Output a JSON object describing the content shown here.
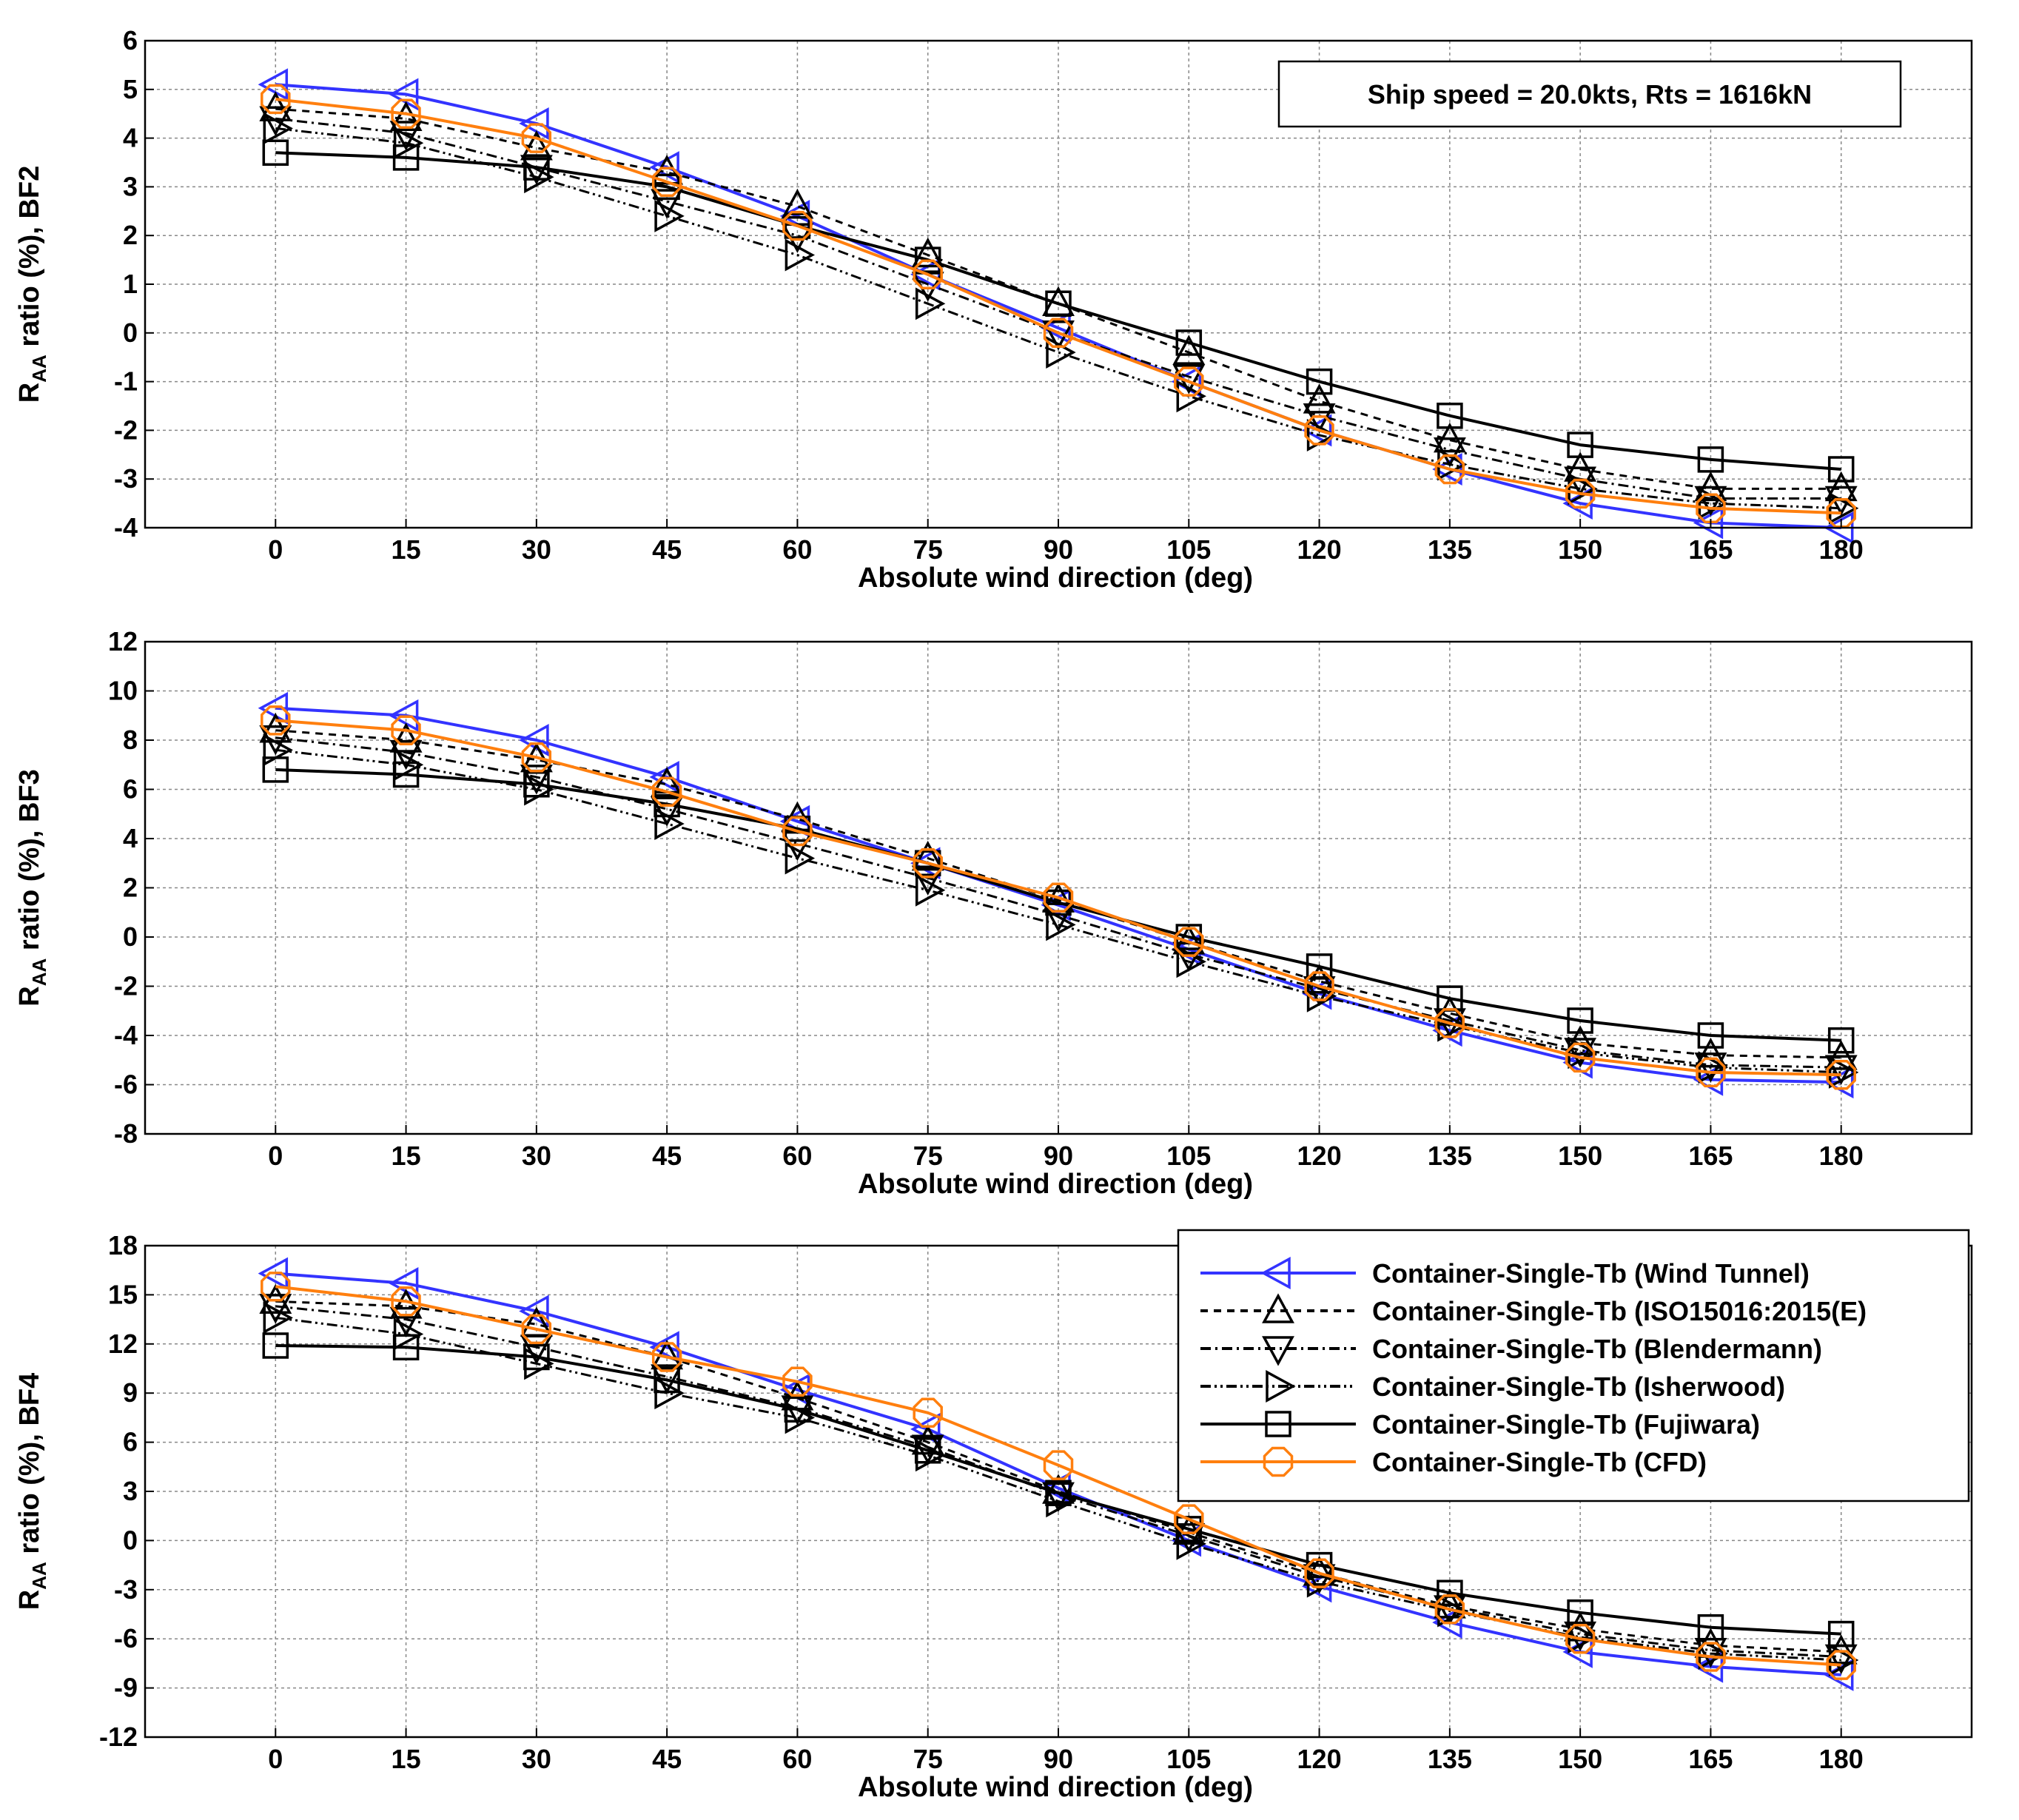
{
  "chart_data": [
    {
      "type": "line",
      "xlabel": "Absolute wind direction (deg)",
      "ylabel": "R_AA ratio (%), BF2",
      "ylabel_main": "R",
      "ylabel_sub": "AA",
      "ylabel_rest": " ratio (%), BF2",
      "annotation": "Ship speed = 20.0kts, Rts = 1616kN",
      "xlim": [
        -15,
        195
      ],
      "ylim": [
        -4,
        6
      ],
      "yticks": [
        6,
        5,
        4,
        3,
        2,
        1,
        0,
        -1,
        -2,
        -3,
        -4
      ],
      "ytick_labels": [
        "6",
        "5",
        "4",
        "3",
        "2",
        "1",
        "0",
        "-1",
        "-2",
        "-3",
        "-4"
      ],
      "grid": true,
      "x": [
        0,
        15,
        30,
        45,
        60,
        75,
        90,
        105,
        120,
        135,
        150,
        165,
        180
      ],
      "xtick_labels": [
        "0",
        "15",
        "30",
        "45",
        "60",
        "75",
        "90",
        "105",
        "120",
        "135",
        "150",
        "165",
        "180"
      ],
      "series": [
        {
          "name": "Container-Single-Tb (Wind Tunnel)",
          "values": [
            5.1,
            4.9,
            4.3,
            3.4,
            2.4,
            1.2,
            0.1,
            -1.0,
            -2.0,
            -2.8,
            -3.5,
            -3.9,
            -4.0
          ]
        },
        {
          "name": "Container-Single-Tb (ISO15016:2015(E)",
          "values": [
            4.6,
            4.4,
            3.8,
            3.3,
            2.6,
            1.6,
            0.6,
            -0.4,
            -1.4,
            -2.2,
            -2.8,
            -3.2,
            -3.2
          ]
        },
        {
          "name": "Container-Single-Tb (Blendermann)",
          "values": [
            4.4,
            4.1,
            3.4,
            2.7,
            2.0,
            1.0,
            0.0,
            -0.9,
            -1.7,
            -2.4,
            -3.0,
            -3.4,
            -3.4
          ]
        },
        {
          "name": "Container-Single-Tb (Isherwood)",
          "values": [
            4.2,
            3.9,
            3.2,
            2.4,
            1.6,
            0.6,
            -0.4,
            -1.3,
            -2.1,
            -2.7,
            -3.2,
            -3.5,
            -3.6
          ]
        },
        {
          "name": "Container-Single-Tb (Fujiwara)",
          "values": [
            3.7,
            3.6,
            3.4,
            3.0,
            2.2,
            1.5,
            0.6,
            -0.2,
            -1.0,
            -1.7,
            -2.3,
            -2.6,
            -2.8
          ]
        },
        {
          "name": "Container-Single-Tb (CFD)",
          "values": [
            4.8,
            4.5,
            4.0,
            3.1,
            2.2,
            1.2,
            0.0,
            -1.0,
            -2.0,
            -2.8,
            -3.3,
            -3.6,
            -3.7
          ]
        }
      ]
    },
    {
      "type": "line",
      "xlabel": "Absolute wind direction (deg)",
      "ylabel": "R_AA ratio (%), BF3",
      "ylabel_main": "R",
      "ylabel_sub": "AA",
      "ylabel_rest": " ratio (%), BF3",
      "xlim": [
        -15,
        195
      ],
      "ylim": [
        -8,
        12
      ],
      "yticks": [
        12,
        10,
        8,
        6,
        4,
        2,
        0,
        -2,
        -4,
        -6,
        -8
      ],
      "ytick_labels": [
        "12",
        "10",
        "8",
        "6",
        "4",
        "2",
        "0",
        "-2",
        "-4",
        "-6",
        "-8"
      ],
      "grid": true,
      "x": [
        0,
        15,
        30,
        45,
        60,
        75,
        90,
        105,
        120,
        135,
        150,
        165,
        180
      ],
      "xtick_labels": [
        "0",
        "15",
        "30",
        "45",
        "60",
        "75",
        "90",
        "105",
        "120",
        "135",
        "150",
        "165",
        "180"
      ],
      "series": [
        {
          "name": "Container-Single-Tb (Wind Tunnel)",
          "values": [
            9.3,
            9.0,
            8.0,
            6.5,
            4.7,
            3.0,
            1.3,
            -0.5,
            -2.3,
            -3.8,
            -5.1,
            -5.8,
            -5.9
          ]
        },
        {
          "name": "Container-Single-Tb (ISO15016:2015(E)",
          "values": [
            8.4,
            8.0,
            7.2,
            6.2,
            4.8,
            3.2,
            1.5,
            -0.2,
            -1.8,
            -3.1,
            -4.3,
            -4.8,
            -4.9
          ]
        },
        {
          "name": "Container-Single-Tb (Blendermann)",
          "values": [
            8.1,
            7.5,
            6.5,
            5.2,
            3.8,
            2.4,
            0.9,
            -0.7,
            -2.1,
            -3.4,
            -4.6,
            -5.2,
            -5.3
          ]
        },
        {
          "name": "Container-Single-Tb (Isherwood)",
          "values": [
            7.6,
            7.0,
            6.0,
            4.6,
            3.2,
            1.9,
            0.5,
            -1.0,
            -2.4,
            -3.6,
            -4.7,
            -5.3,
            -5.5
          ]
        },
        {
          "name": "Container-Single-Tb (Fujiwara)",
          "values": [
            6.8,
            6.6,
            6.2,
            5.4,
            4.4,
            3.0,
            1.4,
            0.0,
            -1.2,
            -2.5,
            -3.4,
            -4.0,
            -4.2
          ]
        },
        {
          "name": "Container-Single-Tb (CFD)",
          "values": [
            8.8,
            8.4,
            7.3,
            5.9,
            4.3,
            3.0,
            1.6,
            -0.2,
            -2.0,
            -3.5,
            -4.9,
            -5.5,
            -5.6
          ]
        }
      ]
    },
    {
      "type": "line",
      "xlabel": "Absolute wind direction (deg)",
      "ylabel": "R_AA ratio (%), BF4",
      "ylabel_main": "R",
      "ylabel_sub": "AA",
      "ylabel_rest": " ratio (%), BF4",
      "xlim": [
        -15,
        195
      ],
      "ylim": [
        -12,
        18
      ],
      "yticks": [
        18,
        15,
        12,
        9,
        6,
        3,
        0,
        -3,
        -6,
        -9,
        -12
      ],
      "ytick_labels": [
        "18",
        "15",
        "12",
        "9",
        "6",
        "3",
        "0",
        "-3",
        "-6",
        "-9",
        "-12"
      ],
      "grid": true,
      "x": [
        0,
        15,
        30,
        45,
        60,
        75,
        90,
        105,
        120,
        135,
        150,
        165,
        180
      ],
      "xtick_labels": [
        "0",
        "15",
        "30",
        "45",
        "60",
        "75",
        "90",
        "105",
        "120",
        "135",
        "150",
        "165",
        "180"
      ],
      "legend": {
        "position": "upper-right",
        "entries": [
          {
            "label": "Container-Single-Tb (Wind Tunnel)",
            "color": "#3333ff",
            "style": "solid",
            "marker": "triangle-left"
          },
          {
            "label": "Container-Single-Tb (ISO15016:2015(E)",
            "color": "#000000",
            "style": "dashed",
            "marker": "triangle-up"
          },
          {
            "label": "Container-Single-Tb (Blendermann)",
            "color": "#000000",
            "style": "dashdot",
            "marker": "triangle-down"
          },
          {
            "label": "Container-Single-Tb (Isherwood)",
            "color": "#000000",
            "style": "dashdotdot",
            "marker": "triangle-right"
          },
          {
            "label": "Container-Single-Tb (Fujiwara)",
            "color": "#000000",
            "style": "solid",
            "marker": "square"
          },
          {
            "label": "Container-Single-Tb (CFD)",
            "color": "#ff7f0e",
            "style": "solid",
            "marker": "octagon"
          }
        ]
      },
      "series": [
        {
          "name": "Container-Single-Tb (Wind Tunnel)",
          "values": [
            16.3,
            15.7,
            14.0,
            11.8,
            9.2,
            6.8,
            3.2,
            0.0,
            -2.8,
            -5.0,
            -6.8,
            -7.7,
            -8.2
          ]
        },
        {
          "name": "Container-Single-Tb (ISO15016:2015(E)",
          "values": [
            14.6,
            14.3,
            13.2,
            11.2,
            8.7,
            6.0,
            3.0,
            0.5,
            -2.0,
            -4.0,
            -5.4,
            -6.4,
            -6.8
          ]
        },
        {
          "name": "Container-Single-Tb (Blendermann)",
          "values": [
            14.3,
            13.5,
            11.8,
            10.0,
            8.1,
            5.7,
            2.8,
            0.3,
            -2.2,
            -4.1,
            -5.7,
            -6.7,
            -7.1
          ]
        },
        {
          "name": "Container-Single-Tb (Isherwood)",
          "values": [
            13.6,
            12.6,
            10.8,
            9.0,
            7.5,
            5.2,
            2.4,
            -0.2,
            -2.5,
            -4.3,
            -5.9,
            -6.9,
            -7.3
          ]
        },
        {
          "name": "Container-Single-Tb (Fujiwara)",
          "values": [
            11.9,
            11.8,
            11.2,
            9.8,
            8.0,
            5.5,
            2.9,
            0.7,
            -1.5,
            -3.2,
            -4.4,
            -5.3,
            -5.7
          ]
        },
        {
          "name": "Container-Single-Tb (CFD)",
          "values": [
            15.5,
            14.6,
            12.9,
            11.2,
            9.7,
            7.8,
            4.6,
            1.3,
            -2.0,
            -4.2,
            -6.0,
            -7.1,
            -7.6
          ]
        }
      ]
    }
  ],
  "series_styles": [
    {
      "color": "#3333ff",
      "dash": "none",
      "marker": "triangle-left"
    },
    {
      "color": "#000000",
      "dash": "10,8",
      "marker": "triangle-up"
    },
    {
      "color": "#000000",
      "dash": "14,6,3,6",
      "marker": "triangle-down"
    },
    {
      "color": "#000000",
      "dash": "14,5,3,5,3,5",
      "marker": "triangle-right"
    },
    {
      "color": "#000000",
      "dash": "none",
      "marker": "square"
    },
    {
      "color": "#ff7f0e",
      "dash": "none",
      "marker": "octagon"
    }
  ]
}
